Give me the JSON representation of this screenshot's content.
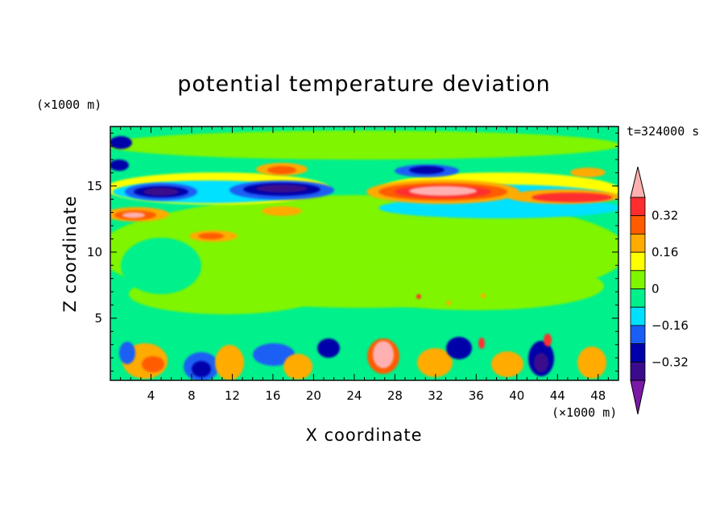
{
  "chart_data": {
    "type": "heatmap",
    "title": "potential temperature deviation",
    "xlabel": "X coordinate",
    "ylabel": "Z coordinate",
    "x_unit": "(×1000 m)",
    "y_unit": "(×1000 m)",
    "time_label": "t=324000 s",
    "xlim": [
      0,
      50
    ],
    "ylim": [
      0.3,
      19.5
    ],
    "x_ticks": [
      4,
      8,
      12,
      16,
      20,
      24,
      28,
      32,
      36,
      40,
      44,
      48
    ],
    "y_ticks": [
      5,
      10,
      15
    ],
    "colorbar": {
      "levels": [
        -0.4,
        -0.32,
        -0.24,
        -0.16,
        -0.08,
        0,
        0.08,
        0.16,
        0.24,
        0.32,
        0.4
      ],
      "tick_labels": [
        "0.32",
        "0.16",
        "0",
        "−0.16",
        "−0.32"
      ],
      "tick_values": [
        0.32,
        0.16,
        0,
        -0.16,
        -0.32
      ],
      "colors": [
        "#7b19a6",
        "#3a0c8c",
        "#0000ab",
        "#1a5ef5",
        "#00e0ff",
        "#00f08c",
        "#7ff500",
        "#ffff00",
        "#ffab00",
        "#ff5c00",
        "#ff2d2d",
        "#ffb0b0"
      ]
    },
    "field_features": [
      {
        "x": 18.5,
        "y": 14.5,
        "value": -0.4
      },
      {
        "x": 6,
        "y": 14.5,
        "value": -0.38
      },
      {
        "x": 34,
        "y": 15,
        "value": 0.45
      },
      {
        "x": 3,
        "y": 12.8,
        "value": 0.4
      },
      {
        "x": 17,
        "y": 16.3,
        "value": 0.3
      },
      {
        "x": 27,
        "y": 2,
        "value": 0.42
      },
      {
        "x": 9.5,
        "y": 1,
        "value": -0.35
      },
      {
        "x": 41.5,
        "y": 1.5,
        "value": -0.38
      },
      {
        "x": 33.5,
        "y": 2.5,
        "value": -0.3
      }
    ]
  }
}
